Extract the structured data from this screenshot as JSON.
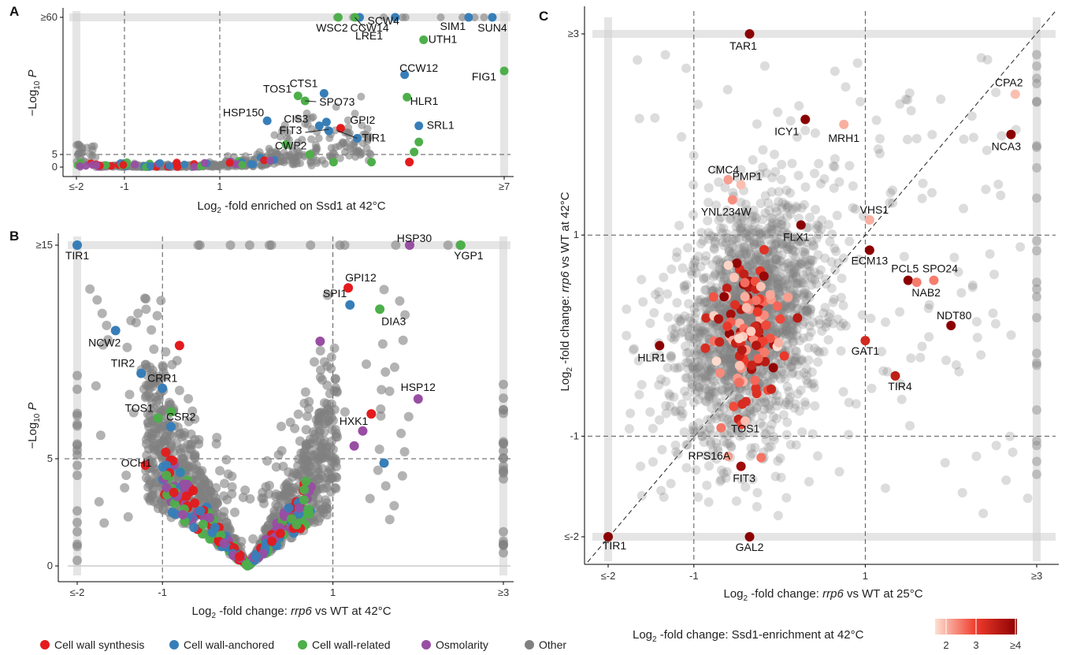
{
  "panels": {
    "a": "A",
    "b": "B",
    "c": "C"
  },
  "colors": {
    "cell_wall_synthesis": "#e41a1c",
    "cell_wall_anchored": "#377eb8",
    "cell_wall_related": "#4daf4a",
    "osmolarity": "#984ea3",
    "other": "#808080",
    "scale_low": "#fde0d2",
    "scale_mid": "#ef3b2c",
    "scale_high": "#8b0000"
  },
  "legend": {
    "items": [
      {
        "label": "Cell wall synthesis",
        "color": "#e41a1c"
      },
      {
        "label": "Cell wall-anchored",
        "color": "#377eb8"
      },
      {
        "label": "Cell wall-related",
        "color": "#4daf4a"
      },
      {
        "label": "Osmolarity",
        "color": "#984ea3"
      },
      {
        "label": "Other",
        "color": "#808080"
      }
    ]
  },
  "colorbar": {
    "title": "Log₂ -fold change: Ssd1-enrichment at 42°C",
    "ticks": [
      "2",
      "3",
      "≥4"
    ]
  },
  "chart_data": [
    {
      "panel": "A",
      "type": "scatter",
      "xlabel": "Log₂ -fold enriched on Ssd1 at 42°C",
      "ylabel": "−Log₁₀ P",
      "xlim": [
        -2,
        7
      ],
      "ylim": [
        0,
        60
      ],
      "xticks": [
        {
          "v": -2,
          "label": "≤-2"
        },
        {
          "v": -1,
          "label": "-1"
        },
        {
          "v": 1,
          "label": "1"
        },
        {
          "v": 7,
          "label": "≥7"
        }
      ],
      "yticks": [
        {
          "v": 0,
          "label": "0"
        },
        {
          "v": 5,
          "label": "5"
        },
        {
          "v": 60,
          "label": "≥60"
        }
      ],
      "labeled_points": [
        {
          "name": "CCW14",
          "x": 4.7,
          "y": 60,
          "cat": "cell_wall_anchored"
        },
        {
          "name": "WSC2",
          "x": 3.5,
          "y": 60,
          "cat": "cell_wall_related"
        },
        {
          "name": "SCW4",
          "x": 3.95,
          "y": 60,
          "cat": "cell_wall_anchored"
        },
        {
          "name": "LRE1",
          "x": 3.85,
          "y": 60,
          "cat": "cell_wall_related"
        },
        {
          "name": "SIM1",
          "x": 6.25,
          "y": 60,
          "cat": "cell_wall_anchored"
        },
        {
          "name": "SUN4",
          "x": 6.75,
          "y": 60,
          "cat": "cell_wall_anchored"
        },
        {
          "name": "UTH1",
          "x": 5.3,
          "y": 51,
          "cat": "cell_wall_related"
        },
        {
          "name": "CCW12",
          "x": 4.9,
          "y": 37,
          "cat": "cell_wall_anchored"
        },
        {
          "name": "FIG1",
          "x": 7.0,
          "y": 38.5,
          "cat": "cell_wall_related"
        },
        {
          "name": "TOS1",
          "x": 2.65,
          "y": 28.5,
          "cat": "cell_wall_related"
        },
        {
          "name": "CTS1",
          "x": 3.2,
          "y": 29.5,
          "cat": "cell_wall_anchored"
        },
        {
          "name": "SPO73",
          "x": 2.8,
          "y": 26.5,
          "cat": "cell_wall_related"
        },
        {
          "name": "HLR1",
          "x": 4.95,
          "y": 28,
          "cat": "cell_wall_related"
        },
        {
          "name": "HSP150",
          "x": 2.0,
          "y": 18.5,
          "cat": "cell_wall_anchored"
        },
        {
          "name": "CIS3",
          "x": 3.1,
          "y": 16.5,
          "cat": "cell_wall_anchored"
        },
        {
          "name": "GPI2",
          "x": 3.55,
          "y": 15.5,
          "cat": "cell_wall_synthesis"
        },
        {
          "name": "SRL1",
          "x": 5.2,
          "y": 16.5,
          "cat": "cell_wall_anchored"
        },
        {
          "name": "FIT3",
          "x": 3.3,
          "y": 14.5,
          "cat": "cell_wall_anchored"
        },
        {
          "name": "TIR1",
          "x": 3.9,
          "y": 11.5,
          "cat": "cell_wall_anchored"
        },
        {
          "name": "CWP2",
          "x": 2.4,
          "y": 9,
          "cat": "cell_wall_related"
        }
      ],
      "extra_points": [
        {
          "x": 5.2,
          "y": 10,
          "cat": "cell_wall_related"
        },
        {
          "x": 5.1,
          "y": 6,
          "cat": "cell_wall_related"
        },
        {
          "x": 5.0,
          "y": 2,
          "cat": "cell_wall_synthesis"
        },
        {
          "x": 4.2,
          "y": 2,
          "cat": "cell_wall_related"
        },
        {
          "x": 3.4,
          "y": 2,
          "cat": "cell_wall_related"
        },
        {
          "x": 2.9,
          "y": 5,
          "cat": "cell_wall_related"
        },
        {
          "x": 3.25,
          "y": 18,
          "cat": "cell_wall_anchored"
        }
      ]
    },
    {
      "panel": "B",
      "type": "scatter",
      "xlabel": "Log₂ -fold change: rrp6 vs WT at 42°C",
      "xlabel_italic": "rrp6",
      "ylabel": "−Log₁₀ P",
      "xlim": [
        -2,
        3
      ],
      "ylim": [
        0,
        15
      ],
      "xticks": [
        {
          "v": -2,
          "label": "≤-2"
        },
        {
          "v": -1,
          "label": "-1"
        },
        {
          "v": 1,
          "label": "1"
        },
        {
          "v": 3,
          "label": "≥3"
        }
      ],
      "yticks": [
        {
          "v": 0,
          "label": "0"
        },
        {
          "v": 5,
          "label": "5"
        },
        {
          "v": 15,
          "label": "≥15"
        }
      ],
      "labeled_points": [
        {
          "name": "TIR1",
          "x": -2.0,
          "y": 15,
          "cat": "cell_wall_anchored"
        },
        {
          "name": "HSP30",
          "x": 1.9,
          "y": 15,
          "cat": "osmolarity"
        },
        {
          "name": "YGP1",
          "x": 2.5,
          "y": 15,
          "cat": "cell_wall_related"
        },
        {
          "name": "GPI12",
          "x": 1.18,
          "y": 13.0,
          "cat": "cell_wall_synthesis"
        },
        {
          "name": "SPI1",
          "x": 1.2,
          "y": 12.2,
          "cat": "cell_wall_anchored"
        },
        {
          "name": "DIA3",
          "x": 1.55,
          "y": 12.0,
          "cat": "cell_wall_related"
        },
        {
          "name": "NCW2",
          "x": -1.55,
          "y": 11.0,
          "cat": "cell_wall_anchored"
        },
        {
          "name": "TIR2",
          "x": -1.25,
          "y": 9.0,
          "cat": "cell_wall_anchored"
        },
        {
          "name": "CRR1",
          "x": -1.0,
          "y": 8.3,
          "cat": "cell_wall_anchored"
        },
        {
          "name": "HSP12",
          "x": 2.0,
          "y": 7.8,
          "cat": "osmolarity"
        },
        {
          "name": "HXK1",
          "x": 1.45,
          "y": 7.1,
          "cat": "cell_wall_synthesis"
        },
        {
          "name": "TOS1",
          "x": -1.05,
          "y": 6.9,
          "cat": "cell_wall_related"
        },
        {
          "name": "CSR2",
          "x": -0.9,
          "y": 6.5,
          "cat": "cell_wall_anchored"
        },
        {
          "name": "OCH1",
          "x": -1.2,
          "y": 4.7,
          "cat": "cell_wall_synthesis"
        }
      ],
      "extra_points": [
        {
          "x": -0.8,
          "y": 10.3,
          "cat": "cell_wall_synthesis"
        },
        {
          "x": -0.9,
          "y": 7.2,
          "cat": "cell_wall_related"
        },
        {
          "x": 0.85,
          "y": 10.5,
          "cat": "osmolarity"
        },
        {
          "x": 1.35,
          "y": 6.3,
          "cat": "osmolarity"
        },
        {
          "x": 1.25,
          "y": 5.6,
          "cat": "osmolarity"
        },
        {
          "x": 1.6,
          "y": 4.8,
          "cat": "cell_wall_anchored"
        }
      ]
    },
    {
      "panel": "C",
      "type": "scatter",
      "xlabel": "Log₂ -fold change: rrp6 vs WT at 25°C",
      "xlabel_italic": "rrp6",
      "ylabel": "Log₂ -fold change: rrp6 vs WT at 42°C",
      "ylabel_italic": "rrp6",
      "xlim": [
        -2,
        3
      ],
      "ylim": [
        -2,
        3
      ],
      "xticks": [
        {
          "v": -2,
          "label": "≤-2"
        },
        {
          "v": -1,
          "label": "-1"
        },
        {
          "v": 1,
          "label": "1"
        },
        {
          "v": 3,
          "label": "≥3"
        }
      ],
      "yticks": [
        {
          "v": -2,
          "label": "≤-2"
        },
        {
          "v": -1,
          "label": "-1"
        },
        {
          "v": 1,
          "label": "1"
        },
        {
          "v": 3,
          "label": "≥3"
        }
      ],
      "labeled_points": [
        {
          "name": "TAR1",
          "x": -0.35,
          "y": 3.0,
          "enrich": 4
        },
        {
          "name": "CPA2",
          "x": 2.75,
          "y": 2.4,
          "enrich": 2.2
        },
        {
          "name": "ICY1",
          "x": 0.3,
          "y": 2.15,
          "enrich": 4
        },
        {
          "name": "MRH1",
          "x": 0.75,
          "y": 2.1,
          "enrich": 2.3
        },
        {
          "name": "NCA3",
          "x": 2.7,
          "y": 2.0,
          "enrich": 4
        },
        {
          "name": "CMC4",
          "x": -0.6,
          "y": 1.55,
          "enrich": 2.4
        },
        {
          "name": "PMP1",
          "x": -0.45,
          "y": 1.5,
          "enrich": 2.2
        },
        {
          "name": "YNL234W",
          "x": -0.55,
          "y": 1.35,
          "enrich": 2.5
        },
        {
          "name": "VHS1",
          "x": 1.05,
          "y": 1.15,
          "enrich": 2.3
        },
        {
          "name": "FLX1",
          "x": 0.25,
          "y": 1.1,
          "enrich": 4
        },
        {
          "name": "ECM13",
          "x": 1.05,
          "y": 0.85,
          "enrich": 4
        },
        {
          "name": "PCL5",
          "x": 1.5,
          "y": 0.55,
          "enrich": 4
        },
        {
          "name": "SPO24",
          "x": 1.8,
          "y": 0.55,
          "enrich": 2.6
        },
        {
          "name": "NAB2",
          "x": 1.6,
          "y": 0.53,
          "enrich": 2.6
        },
        {
          "name": "NDT80",
          "x": 2.0,
          "y": 0.1,
          "enrich": 4
        },
        {
          "name": "HLR1",
          "x": -1.4,
          "y": -0.1,
          "enrich": 4
        },
        {
          "name": "GAT1",
          "x": 1.0,
          "y": -0.05,
          "enrich": 3.3
        },
        {
          "name": "TIR4",
          "x": 1.35,
          "y": -0.4,
          "enrich": 3.5
        },
        {
          "name": "TOS1",
          "x": -0.4,
          "y": -0.85,
          "enrich": 2.2
        },
        {
          "name": "RPS16A",
          "x": -0.6,
          "y": -1.2,
          "enrich": 2.4
        },
        {
          "name": "FIT3",
          "x": -0.45,
          "y": -1.3,
          "enrich": 3.8
        },
        {
          "name": "TIR1",
          "x": -2.0,
          "y": -2.0,
          "enrich": 4
        },
        {
          "name": "GAL2",
          "x": -0.35,
          "y": -2.0,
          "enrich": 4
        }
      ],
      "diagonal": true
    }
  ]
}
